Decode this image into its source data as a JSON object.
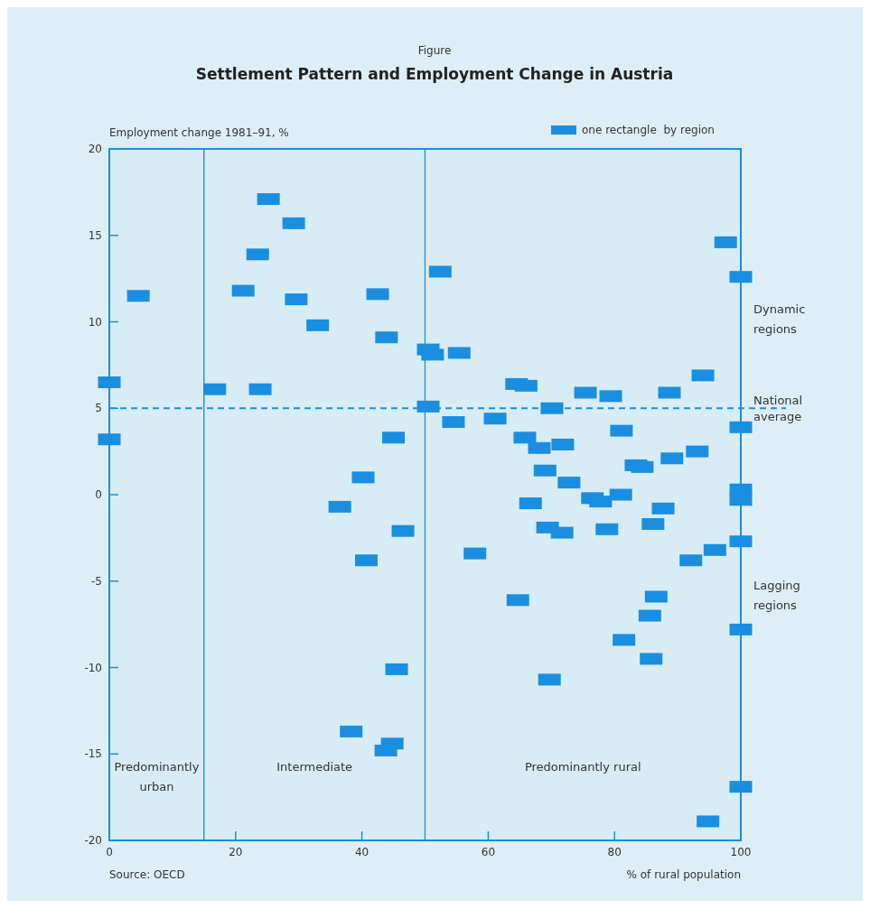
{
  "chart_data": {
    "type": "scatter",
    "subtitle": "Figure",
    "title": "Settlement Pattern and Employment Change in Austria",
    "ylabel": "Employment change 1981–91, %",
    "xlabel": "% of rural population",
    "xlim": [
      0,
      100
    ],
    "xticks": [
      0,
      20,
      40,
      60,
      80,
      100
    ],
    "ylim": [
      -20,
      20
    ],
    "yticks": [
      -20,
      -15,
      -10,
      -5,
      0,
      5,
      10,
      15,
      20
    ],
    "marker": "square",
    "legend": "top right",
    "grid": false,
    "series": [
      {
        "name": "one rectangle  by region",
        "color": "#1a8ee0",
        "x": [
          0,
          0,
          4.6,
          16.7,
          21.2,
          23.5,
          25.2,
          23.9,
          29.2,
          29.6,
          33,
          42.5,
          43.9,
          45,
          40.2,
          36.5,
          40.7,
          46.5,
          45.5,
          38.3,
          44.8,
          43.8,
          50.5,
          51.2,
          50.5,
          52.4,
          55.4,
          54.5,
          61.1,
          57.9,
          64.5,
          66,
          65.8,
          68.1,
          69,
          66.7,
          69.4,
          71.7,
          70.1,
          71.8,
          72.8,
          75.4,
          76.5,
          77.8,
          78.8,
          79.4,
          81.1,
          81,
          64.7,
          69.7,
          81.5,
          83.4,
          84.4,
          86.1,
          87.7,
          86.6,
          85.6,
          85.8,
          88.7,
          89.1,
          93.1,
          92.1,
          95.9,
          94,
          97.6,
          100,
          100,
          100,
          100,
          100,
          100,
          100,
          94.8
        ],
        "values": [
          6.5,
          3.2,
          11.5,
          6.1,
          11.8,
          13.9,
          17.1,
          6.1,
          15.7,
          11.3,
          9.8,
          11.6,
          9.1,
          3.3,
          1.0,
          -0.7,
          -3.8,
          -2.1,
          -10.1,
          -13.7,
          -14.4,
          -14.8,
          8.4,
          8.1,
          5.1,
          12.9,
          8.2,
          4.2,
          4.4,
          -3.4,
          6.4,
          6.3,
          3.3,
          2.7,
          1.4,
          -0.5,
          -1.9,
          -2.2,
          5.0,
          2.9,
          0.7,
          5.9,
          -0.2,
          -0.4,
          -2.0,
          5.7,
          3.7,
          0,
          -6.1,
          -10.7,
          -8.4,
          1.7,
          1.6,
          -1.7,
          -0.8,
          -5.9,
          -7.0,
          -9.5,
          5.9,
          2.1,
          2.5,
          -3.8,
          -3.2,
          6.9,
          14.6,
          12.6,
          3.9,
          0.3,
          -0.3,
          -2.7,
          -7.8,
          -16.9,
          -18.9
        ]
      }
    ],
    "ref_lines": [
      {
        "axis": "y",
        "value": 5,
        "label": "National average",
        "line_style": "dashed",
        "color": "#1a8ee0"
      }
    ],
    "bands": [
      {
        "axis": "x",
        "from": 0,
        "to": 15,
        "label": "Predominantly urban",
        "color": "#d8ecf5"
      },
      {
        "axis": "x",
        "from": 15,
        "to": 50,
        "label": "Intermediate",
        "color": "#d8ecf5"
      },
      {
        "axis": "x",
        "from": 50,
        "to": 100,
        "label": "Predominantly rural",
        "color": "#d8ecf5"
      }
    ],
    "annotations": [
      "Dynamic regions",
      "Lagging regions",
      "Source: OECD"
    ]
  }
}
